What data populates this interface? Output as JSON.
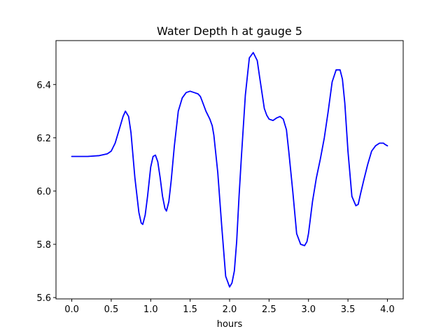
{
  "chart_data": {
    "type": "line",
    "title": "Water Depth h at gauge 5",
    "xlabel": "hours",
    "ylabel": "",
    "xlim": [
      -0.2,
      4.2
    ],
    "ylim": [
      5.595,
      6.565
    ],
    "xticks": [
      0.0,
      0.5,
      1.0,
      1.5,
      2.0,
      2.5,
      3.0,
      3.5,
      4.0
    ],
    "xtick_labels": [
      "0.0",
      "0.5",
      "1.0",
      "1.5",
      "2.0",
      "2.5",
      "3.0",
      "3.5",
      "4.0"
    ],
    "yticks": [
      5.6,
      5.8,
      6.0,
      6.2,
      6.4
    ],
    "ytick_labels": [
      "5.6",
      "5.8",
      "6.0",
      "6.2",
      "6.4"
    ],
    "grid": false,
    "series": [
      {
        "color": "#0000ff",
        "x": [
          0.0,
          0.2,
          0.35,
          0.45,
          0.5,
          0.55,
          0.6,
          0.65,
          0.68,
          0.72,
          0.75,
          0.8,
          0.85,
          0.88,
          0.9,
          0.93,
          0.96,
          1.0,
          1.03,
          1.06,
          1.09,
          1.12,
          1.15,
          1.18,
          1.2,
          1.23,
          1.26,
          1.3,
          1.35,
          1.4,
          1.45,
          1.5,
          1.55,
          1.6,
          1.63,
          1.65,
          1.7,
          1.75,
          1.78,
          1.8,
          1.85,
          1.9,
          1.95,
          2.0,
          2.03,
          2.06,
          2.09,
          2.12,
          2.15,
          2.2,
          2.25,
          2.3,
          2.35,
          2.38,
          2.41,
          2.44,
          2.47,
          2.5,
          2.55,
          2.6,
          2.64,
          2.68,
          2.72,
          2.75,
          2.8,
          2.85,
          2.9,
          2.95,
          2.98,
          3.0,
          3.05,
          3.1,
          3.15,
          3.2,
          3.25,
          3.3,
          3.35,
          3.4,
          3.43,
          3.46,
          3.5,
          3.55,
          3.6,
          3.63,
          3.66,
          3.7,
          3.75,
          3.8,
          3.85,
          3.9,
          3.92,
          3.95,
          3.97,
          4.0
        ],
        "y": [
          6.13,
          6.13,
          6.133,
          6.14,
          6.15,
          6.18,
          6.23,
          6.28,
          6.3,
          6.28,
          6.22,
          6.05,
          5.92,
          5.88,
          5.875,
          5.91,
          5.98,
          6.09,
          6.13,
          6.135,
          6.11,
          6.05,
          5.98,
          5.935,
          5.925,
          5.96,
          6.04,
          6.17,
          6.3,
          6.35,
          6.37,
          6.375,
          6.37,
          6.365,
          6.355,
          6.34,
          6.3,
          6.27,
          6.245,
          6.21,
          6.07,
          5.87,
          5.68,
          5.64,
          5.655,
          5.7,
          5.81,
          5.98,
          6.13,
          6.36,
          6.5,
          6.52,
          6.49,
          6.43,
          6.37,
          6.31,
          6.285,
          6.27,
          6.265,
          6.275,
          6.28,
          6.27,
          6.23,
          6.15,
          6.0,
          5.84,
          5.8,
          5.795,
          5.81,
          5.84,
          5.96,
          6.05,
          6.12,
          6.2,
          6.3,
          6.41,
          6.455,
          6.455,
          6.42,
          6.33,
          6.15,
          5.98,
          5.945,
          5.95,
          5.99,
          6.04,
          6.1,
          6.15,
          6.17,
          6.18,
          6.18,
          6.18,
          6.175,
          6.17
        ]
      }
    ]
  }
}
